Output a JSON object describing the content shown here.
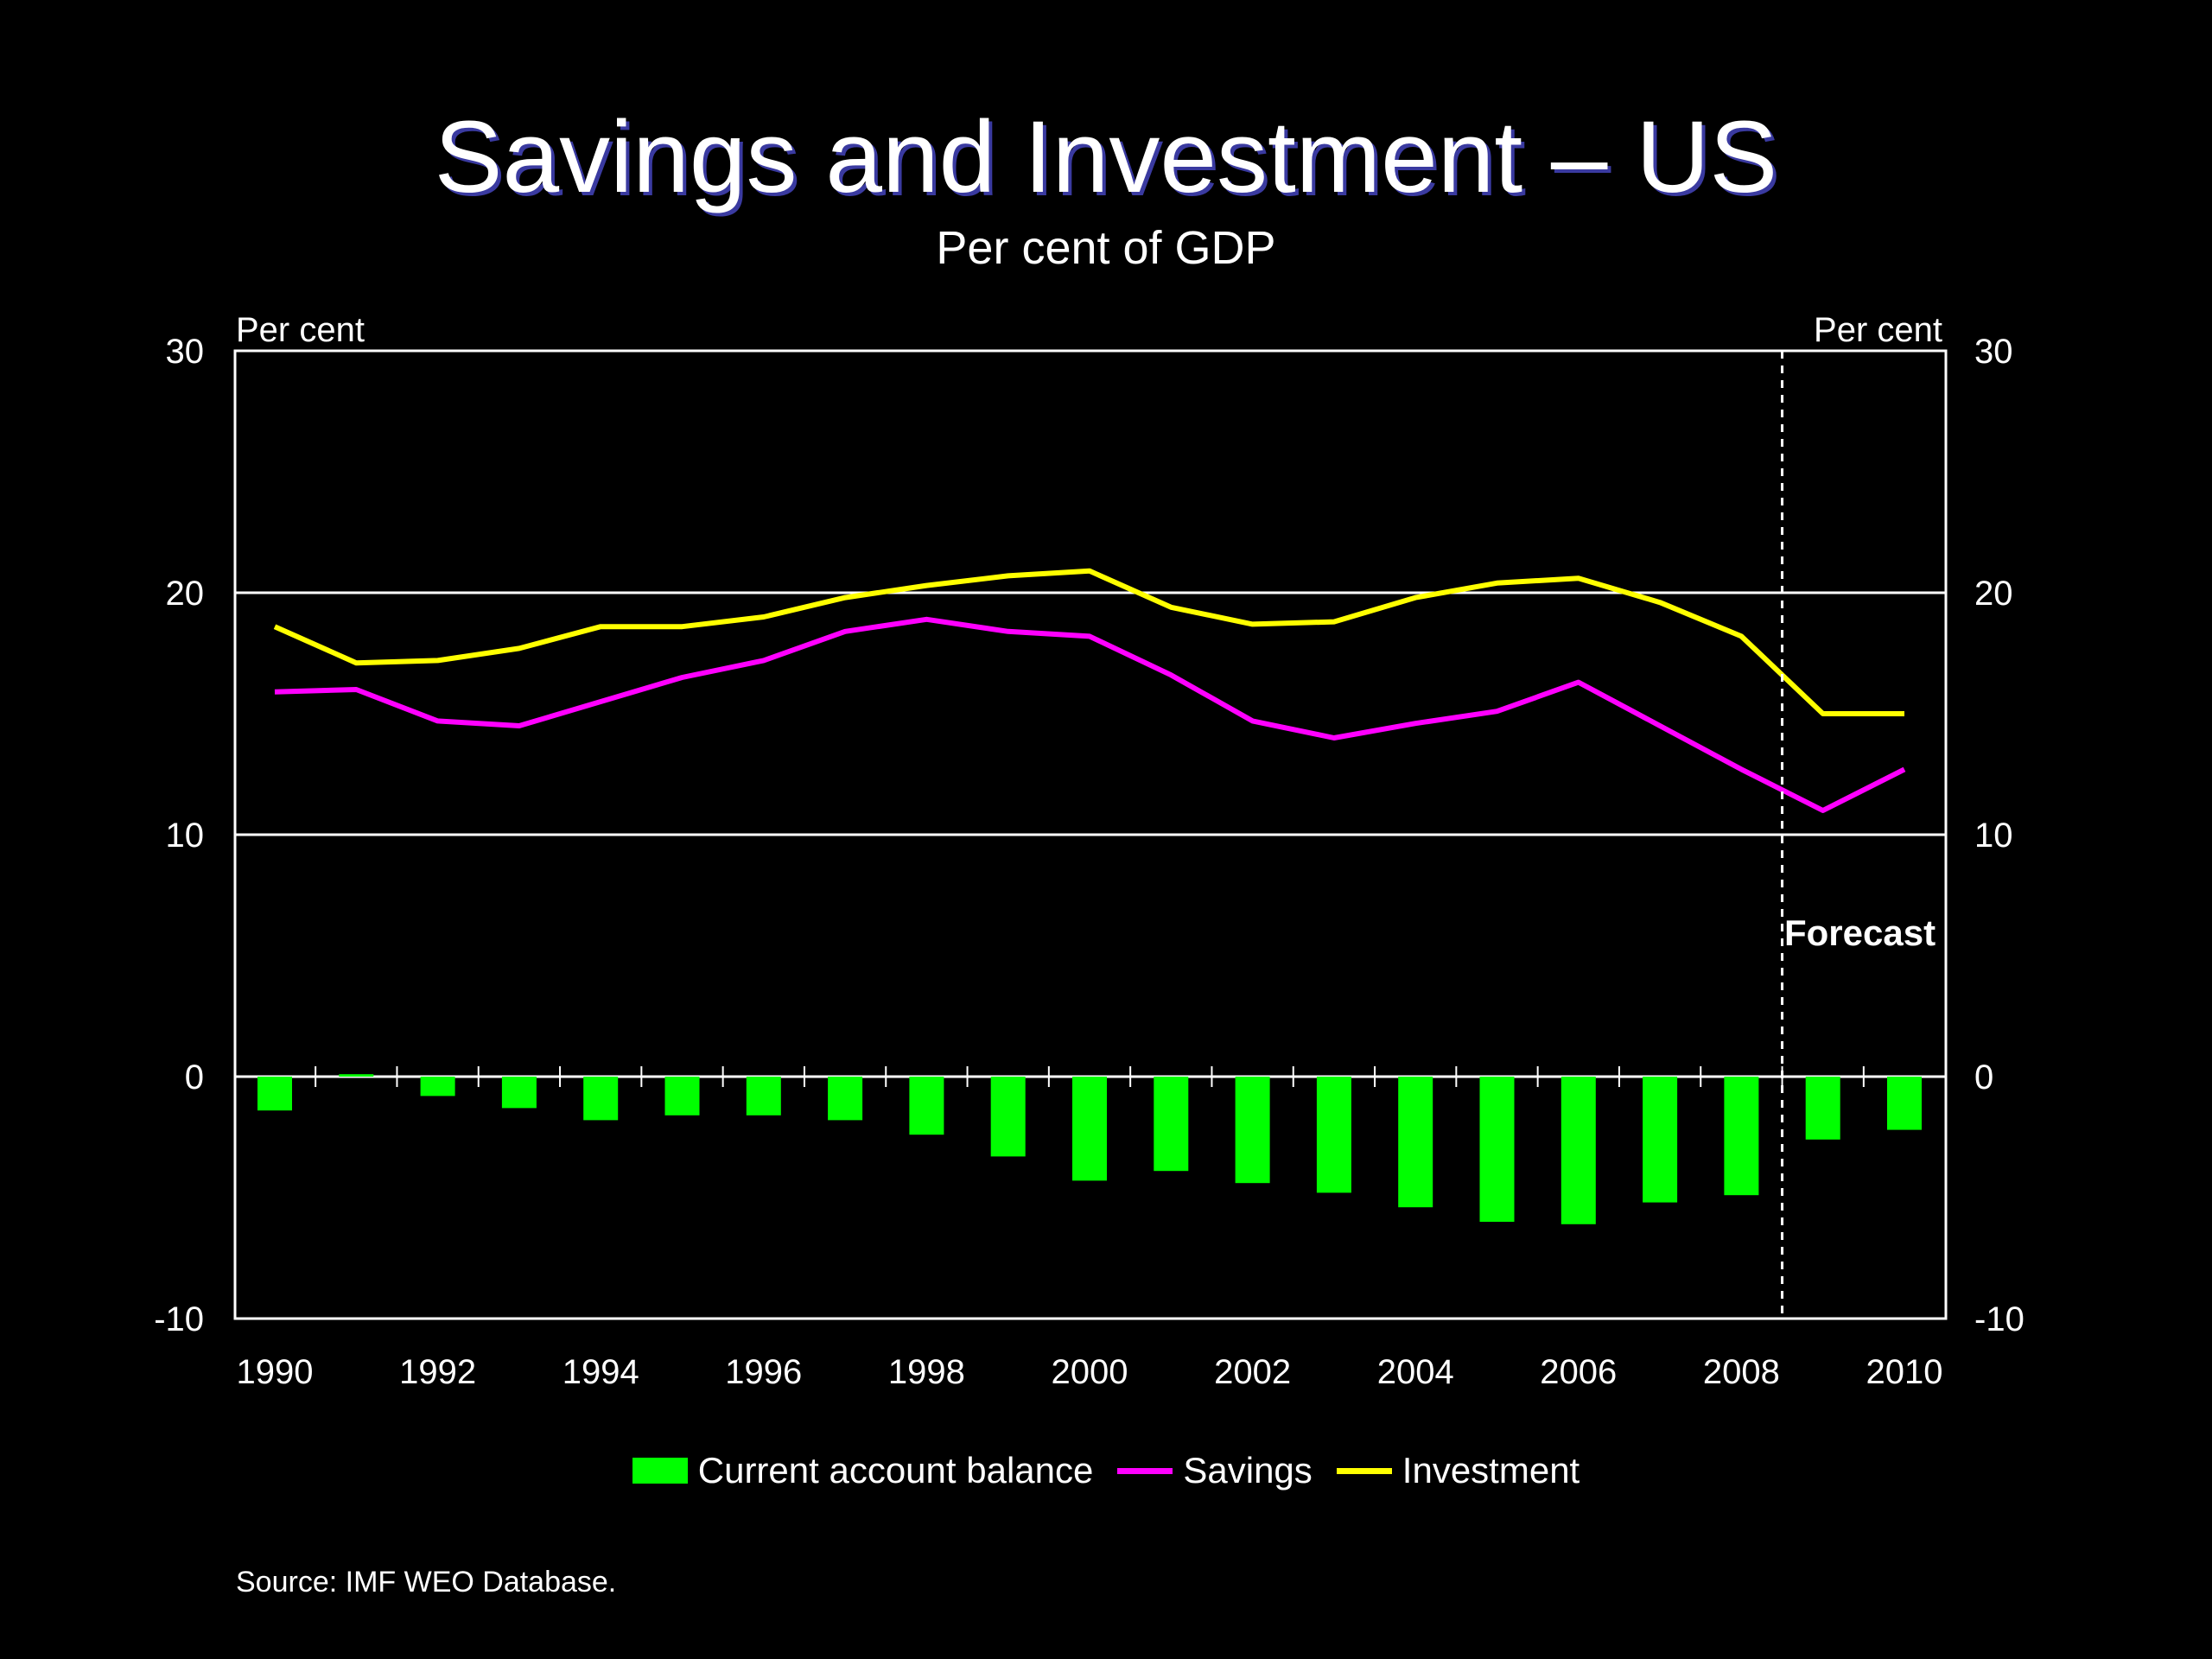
{
  "chart_data": {
    "type": "bar+line",
    "title": "Savings and Investment – US",
    "subtitle": "Per cent of GDP",
    "y_unit_left": "Per cent",
    "y_unit_right": "Per cent",
    "ylim": [
      -10,
      30
    ],
    "y_ticks": [
      "30",
      "20",
      "10",
      "0",
      "-10"
    ],
    "y_tick_values": [
      30,
      20,
      10,
      0,
      -10
    ],
    "x": [
      1990,
      1991,
      1992,
      1993,
      1994,
      1995,
      1996,
      1997,
      1998,
      1999,
      2000,
      2001,
      2002,
      2003,
      2004,
      2005,
      2006,
      2007,
      2008,
      2009,
      2010
    ],
    "x_tick_labels": [
      "1990",
      "1992",
      "1994",
      "1996",
      "1998",
      "2000",
      "2002",
      "2004",
      "2006",
      "2008",
      "2010"
    ],
    "x_tick_years": [
      1990,
      1992,
      1994,
      1996,
      1998,
      2000,
      2002,
      2004,
      2006,
      2008,
      2010
    ],
    "series": [
      {
        "name": "Current account balance",
        "type": "bar",
        "color": "#00ff00",
        "values": [
          -1.4,
          0.1,
          -0.8,
          -1.3,
          -1.8,
          -1.6,
          -1.6,
          -1.8,
          -2.4,
          -3.3,
          -4.3,
          -3.9,
          -4.4,
          -4.8,
          -5.4,
          -6.0,
          -6.1,
          -5.2,
          -4.9,
          -2.6,
          -2.2
        ]
      },
      {
        "name": "Savings",
        "type": "line",
        "color": "#ff00ff",
        "values": [
          15.9,
          16.0,
          14.7,
          14.5,
          15.5,
          16.5,
          17.2,
          18.4,
          18.9,
          18.4,
          18.2,
          16.6,
          14.7,
          14.0,
          14.6,
          15.1,
          16.3,
          14.5,
          12.7,
          11.0,
          12.7
        ]
      },
      {
        "name": "Investment",
        "type": "line",
        "color": "#ffff00",
        "values": [
          18.6,
          17.1,
          17.2,
          17.7,
          18.6,
          18.6,
          19.0,
          19.8,
          20.3,
          20.7,
          20.9,
          19.4,
          18.7,
          18.8,
          19.8,
          20.4,
          20.6,
          19.6,
          18.2,
          15.0,
          15.0
        ]
      }
    ],
    "forecast": {
      "label": "Forecast",
      "after_year": 2008
    },
    "gridlines": [
      20,
      10,
      0
    ],
    "grid": true,
    "legend": "bottom"
  },
  "source": "Source: IMF WEO Database.",
  "colors": {
    "background": "#000000",
    "grid": "#ffffff",
    "text": "#ffffff"
  }
}
